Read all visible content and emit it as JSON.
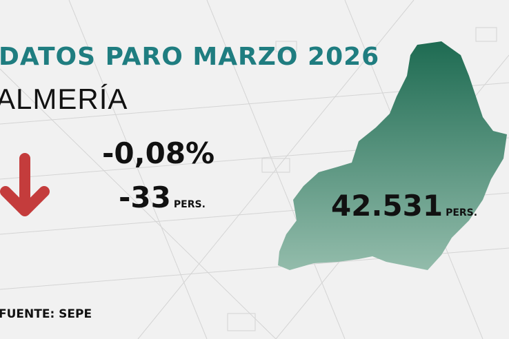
{
  "title": "DATOS PARO MARZO 2026",
  "province": "ALMERÍA",
  "change_percent": "-0,08%",
  "change_people": "-33",
  "unit": "PERS.",
  "total": "42.531",
  "source": "FUENTE: SEPE",
  "trend_icon": "arrow-down-icon",
  "colors": {
    "title": "#1f7d80",
    "arrow": "#c43c3c",
    "map_top": "#1e6b52",
    "map_bottom": "#93bcab"
  }
}
